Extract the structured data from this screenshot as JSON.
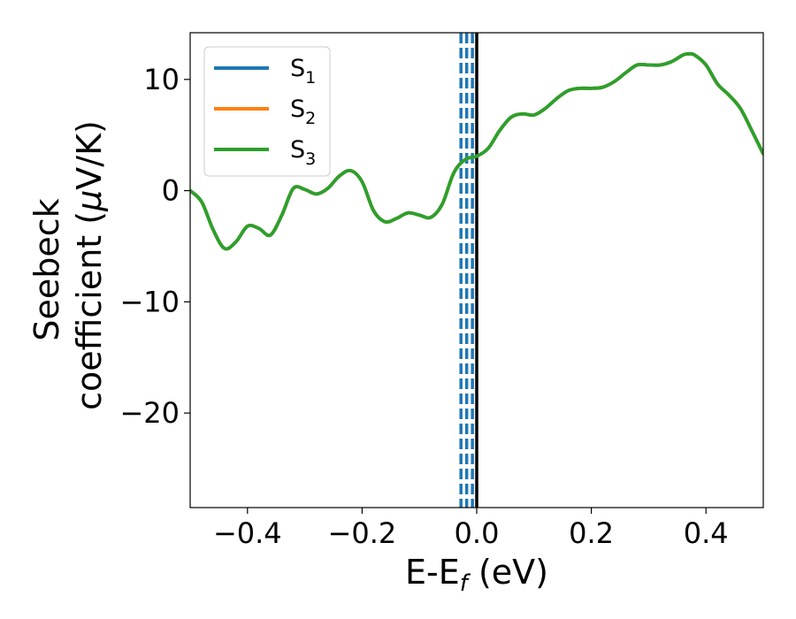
{
  "chart_data": {
    "type": "line",
    "xlabel": "E-E",
    "xlabel_sub": "f",
    "xlabel_unit": " (eV)",
    "ylabel_line1": "Seebeck",
    "ylabel_line2": "coefficient  (",
    "ylabel_mu": "μ",
    "ylabel_unit": "V/K)",
    "xlim": [
      -0.5,
      0.5
    ],
    "ylim": [
      -28.5,
      14.2
    ],
    "xticks": [
      {
        "value": -0.4,
        "label": "−0.4"
      },
      {
        "value": -0.2,
        "label": "−0.2"
      },
      {
        "value": 0.0,
        "label": "0.0"
      },
      {
        "value": 0.2,
        "label": "0.2"
      },
      {
        "value": 0.4,
        "label": "0.4"
      }
    ],
    "yticks": [
      {
        "value": 10,
        "label": "10"
      },
      {
        "value": 0,
        "label": "0"
      },
      {
        "value": -10,
        "label": "−10"
      },
      {
        "value": -20,
        "label": "−20"
      }
    ],
    "legend_position": "top-left",
    "grid": false,
    "series": [
      {
        "name": "S",
        "sub": "1",
        "color": "#1f77b4"
      },
      {
        "name": "S",
        "sub": "2",
        "color": "#ff7f0e"
      },
      {
        "name": "S",
        "sub": "3",
        "color": "#2ca02c"
      }
    ],
    "curve": {
      "x": [
        -0.5,
        -0.48,
        -0.46,
        -0.44,
        -0.42,
        -0.4,
        -0.38,
        -0.36,
        -0.34,
        -0.32,
        -0.3,
        -0.28,
        -0.26,
        -0.24,
        -0.22,
        -0.2,
        -0.18,
        -0.16,
        -0.14,
        -0.12,
        -0.1,
        -0.08,
        -0.06,
        -0.04,
        -0.02,
        0.0,
        0.02,
        0.04,
        0.06,
        0.08,
        0.1,
        0.12,
        0.14,
        0.16,
        0.18,
        0.2,
        0.22,
        0.24,
        0.26,
        0.28,
        0.3,
        0.32,
        0.34,
        0.36,
        0.37,
        0.38,
        0.4,
        0.42,
        0.44,
        0.46,
        0.48,
        0.5
      ],
      "y": [
        0.0,
        -1.0,
        -3.5,
        -5.2,
        -4.6,
        -3.2,
        -3.4,
        -4.0,
        -2.2,
        0.2,
        0.1,
        -0.3,
        0.2,
        1.3,
        1.8,
        0.8,
        -1.8,
        -2.8,
        -2.5,
        -2.0,
        -2.2,
        -2.4,
        -1.2,
        1.6,
        2.8,
        3.1,
        3.8,
        5.4,
        6.6,
        6.9,
        6.8,
        7.4,
        8.3,
        9.0,
        9.2,
        9.2,
        9.3,
        9.8,
        10.6,
        11.3,
        11.3,
        11.3,
        11.6,
        12.2,
        12.3,
        12.2,
        11.3,
        9.6,
        8.6,
        7.4,
        5.4,
        3.3
      ]
    },
    "vlines_dashed": {
      "x": [
        -0.0275,
        -0.0175,
        -0.0075
      ],
      "color": "#1f77b4"
    },
    "vline_solid": {
      "x": 0.0,
      "color": "#000000"
    }
  }
}
